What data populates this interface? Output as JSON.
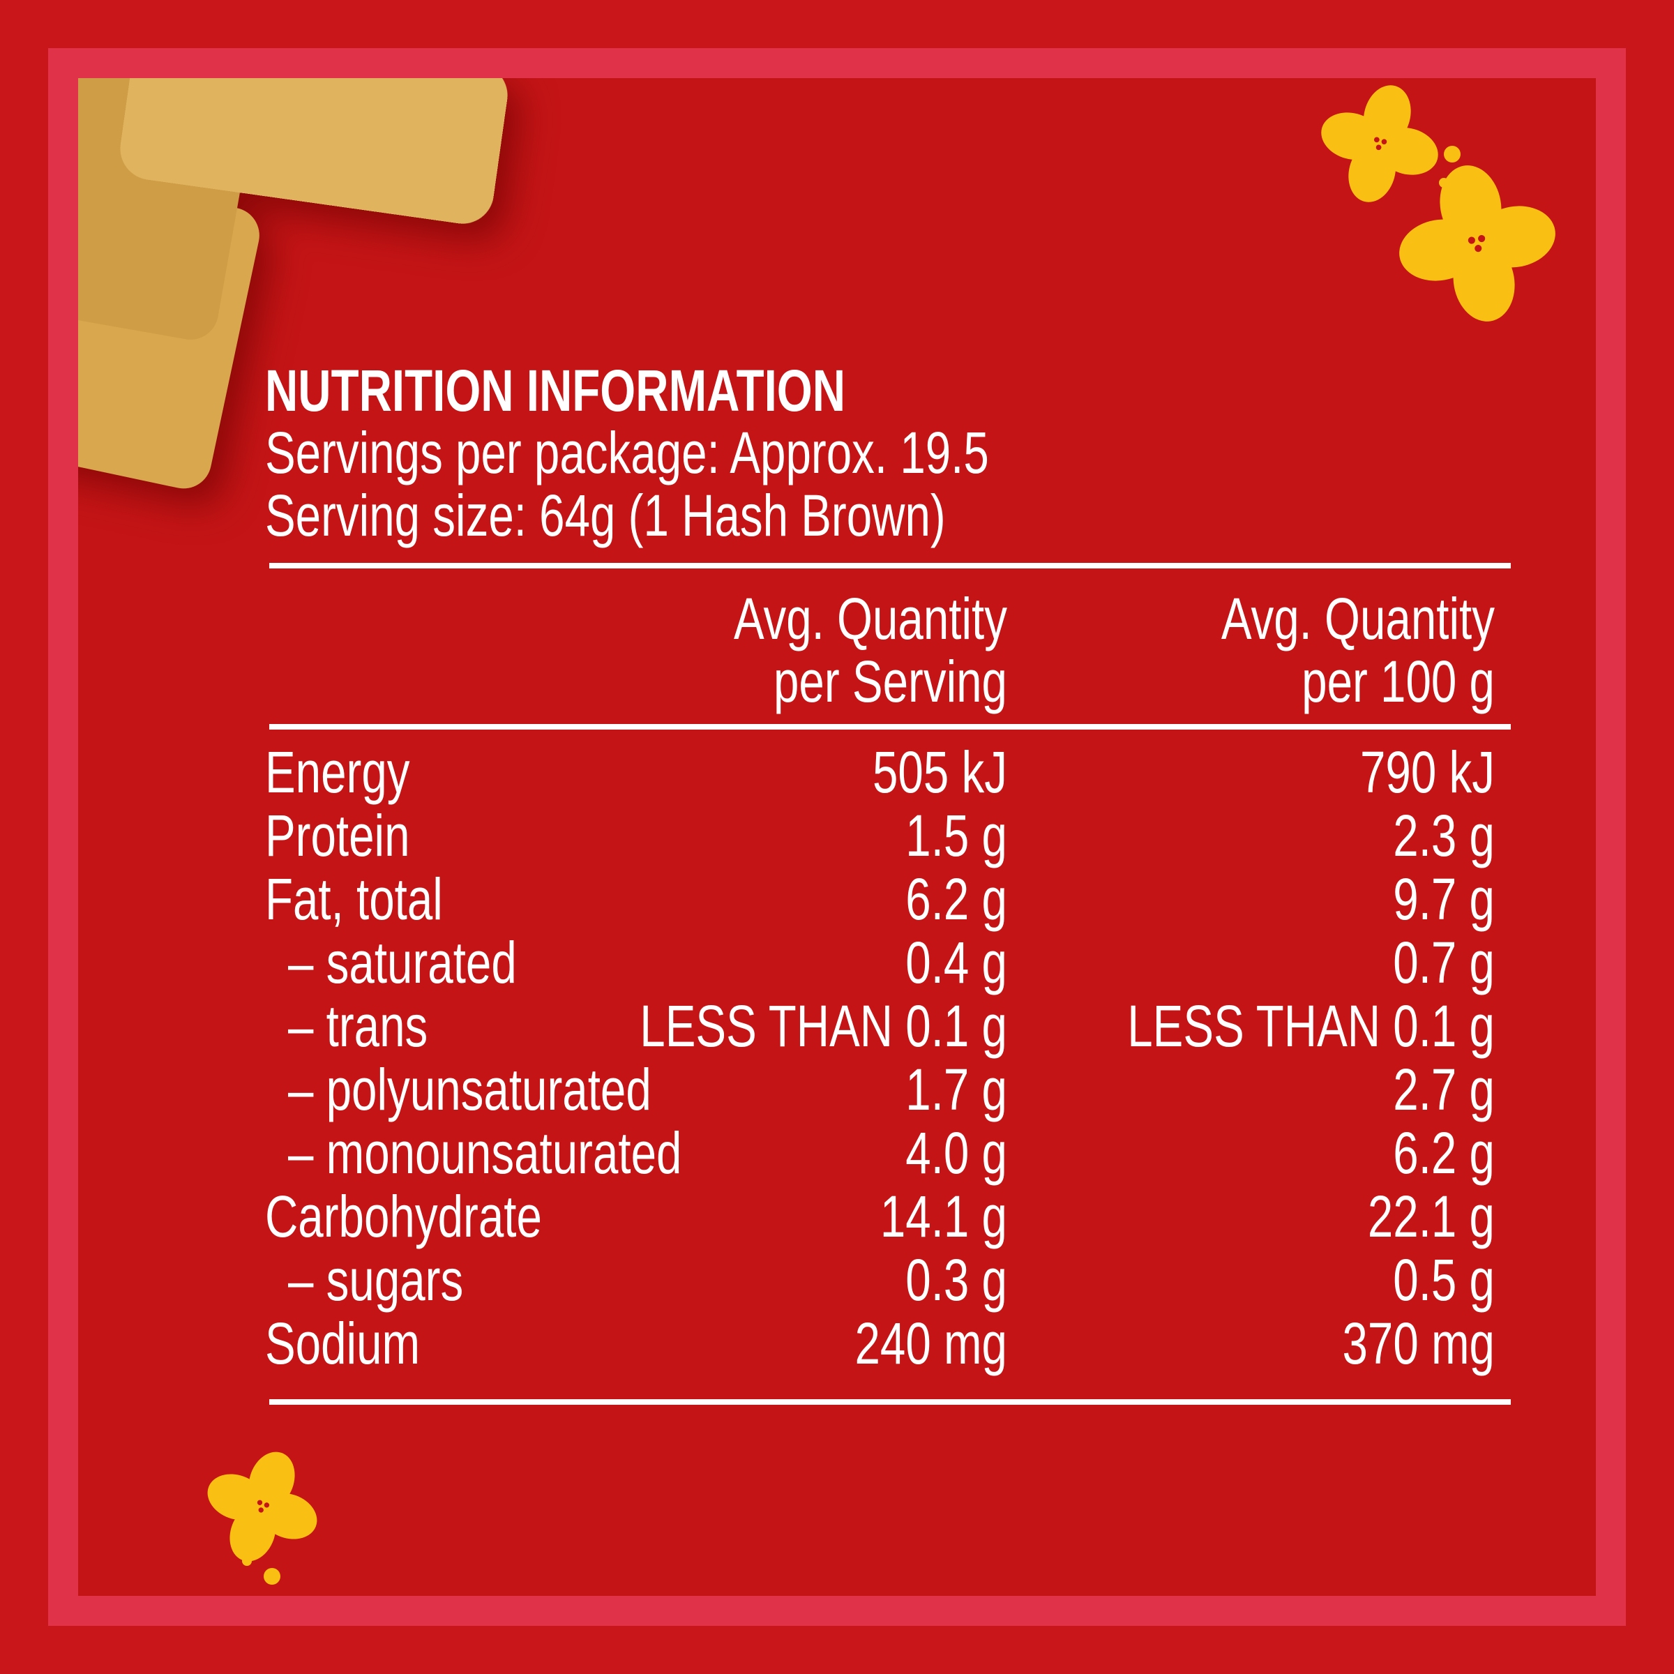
{
  "header": {
    "title": "NUTRITION INFORMATION",
    "servings": "Servings per package: Approx. 19.5",
    "serving_size": "Serving size: 64g (1 Hash Brown)"
  },
  "table": {
    "columns": [
      [
        "Avg. Quantity",
        "per Serving"
      ],
      [
        "Avg. Quantity",
        "per 100 g"
      ]
    ],
    "rows": [
      [
        "Energy",
        "505 kJ",
        "790 kJ"
      ],
      [
        "Protein",
        "1.5 g",
        "2.3 g"
      ],
      [
        "Fat, total",
        "6.2 g",
        "9.7 g"
      ],
      [
        "– saturated",
        "0.4 g",
        "0.7 g"
      ],
      [
        "– trans",
        "LESS THAN 0.1 g",
        "LESS THAN 0.1 g"
      ],
      [
        "– polyunsaturated",
        "1.7 g",
        "2.7 g"
      ],
      [
        "– monounsaturated",
        "4.0 g",
        "6.2 g"
      ],
      [
        "Carbohydrate",
        "14.1 g",
        "22.1 g"
      ],
      [
        "– sugars",
        "0.3 g",
        "0.5 g"
      ],
      [
        "Sodium",
        "240 mg",
        "370 mg"
      ]
    ]
  }
}
